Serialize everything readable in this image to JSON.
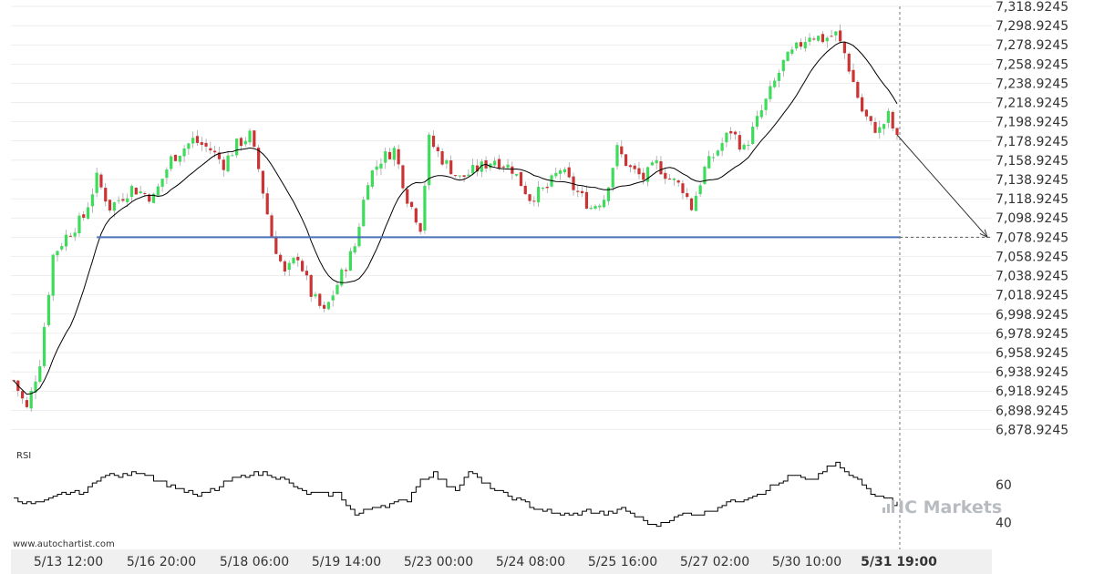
{
  "chart_data": {
    "type": "candlestick",
    "y_range": [
      6868.9245,
      7318.9245
    ],
    "y_ticks": [
      "7,318.9245",
      "7,298.9245",
      "7,278.9245",
      "7,258.9245",
      "7,238.9245",
      "7,218.9245",
      "7,198.9245",
      "7,178.9245",
      "7,158.9245",
      "7,138.9245",
      "7,118.9245",
      "7,098.9245",
      "7,078.9245",
      "7,058.9245",
      "7,038.9245",
      "7,018.9245",
      "6,998.9245",
      "6,978.9245",
      "6,958.9245",
      "6,938.9245",
      "6,918.9245",
      "6,898.9245",
      "6,878.9245"
    ],
    "x_ticks": [
      "5/13 12:00",
      "5/16 20:00",
      "5/18 06:00",
      "5/19 14:00",
      "5/23 00:00",
      "5/24 08:00",
      "5/25 16:00",
      "5/27 02:00",
      "5/30 10:00",
      "5/31 19:00"
    ],
    "x_tick_bold_index": 9,
    "support_level": 7078.9245,
    "projection_target": 7078.9245,
    "price_key": [
      [
        0,
        6930
      ],
      [
        3,
        6900
      ],
      [
        6,
        6950
      ],
      [
        9,
        7060
      ],
      [
        12,
        7080
      ],
      [
        16,
        7100
      ],
      [
        19,
        7140
      ],
      [
        22,
        7110
      ],
      [
        27,
        7130
      ],
      [
        32,
        7120
      ],
      [
        36,
        7160
      ],
      [
        41,
        7180
      ],
      [
        45,
        7170
      ],
      [
        48,
        7155
      ],
      [
        51,
        7175
      ],
      [
        54,
        7185
      ],
      [
        56,
        7150
      ],
      [
        59,
        7080
      ],
      [
        62,
        7040
      ],
      [
        65,
        7060
      ],
      [
        68,
        7020
      ],
      [
        71,
        7000
      ],
      [
        74,
        7030
      ],
      [
        78,
        7070
      ],
      [
        81,
        7140
      ],
      [
        84,
        7160
      ],
      [
        87,
        7170
      ],
      [
        90,
        7120
      ],
      [
        93,
        7090
      ],
      [
        95,
        7180
      ],
      [
        98,
        7160
      ],
      [
        102,
        7140
      ],
      [
        106,
        7150
      ],
      [
        110,
        7160
      ],
      [
        114,
        7150
      ],
      [
        118,
        7120
      ],
      [
        122,
        7130
      ],
      [
        125,
        7150
      ],
      [
        128,
        7130
      ],
      [
        132,
        7110
      ],
      [
        135,
        7120
      ],
      [
        138,
        7170
      ],
      [
        141,
        7150
      ],
      [
        144,
        7140
      ],
      [
        147,
        7155
      ],
      [
        150,
        7140
      ],
      [
        153,
        7130
      ],
      [
        155,
        7110
      ],
      [
        158,
        7150
      ],
      [
        161,
        7170
      ],
      [
        164,
        7190
      ],
      [
        167,
        7170
      ],
      [
        170,
        7200
      ],
      [
        173,
        7230
      ],
      [
        176,
        7260
      ],
      [
        179,
        7275
      ],
      [
        182,
        7290
      ],
      [
        185,
        7285
      ],
      [
        188,
        7290
      ],
      [
        190,
        7270
      ],
      [
        192,
        7240
      ],
      [
        194,
        7210
      ],
      [
        196,
        7195
      ],
      [
        198,
        7190
      ],
      [
        200,
        7205
      ],
      [
        202,
        7180
      ]
    ],
    "rsi": {
      "label": "RSI",
      "ticks": [
        60,
        40
      ],
      "range": [
        32,
        78
      ],
      "key": [
        [
          0,
          53
        ],
        [
          3,
          50
        ],
        [
          7,
          51
        ],
        [
          12,
          56
        ],
        [
          16,
          56
        ],
        [
          20,
          65
        ],
        [
          25,
          65
        ],
        [
          29,
          67
        ],
        [
          33,
          62
        ],
        [
          38,
          58
        ],
        [
          42,
          54
        ],
        [
          46,
          58
        ],
        [
          50,
          63
        ],
        [
          54,
          66
        ],
        [
          58,
          66
        ],
        [
          62,
          62
        ],
        [
          66,
          56
        ],
        [
          70,
          55
        ],
        [
          74,
          55
        ],
        [
          78,
          44
        ],
        [
          82,
          48
        ],
        [
          86,
          50
        ],
        [
          90,
          52
        ],
        [
          93,
          63
        ],
        [
          96,
          66
        ],
        [
          99,
          60
        ],
        [
          101,
          58
        ],
        [
          104,
          67
        ],
        [
          107,
          61
        ],
        [
          111,
          56
        ],
        [
          115,
          52
        ],
        [
          119,
          48
        ],
        [
          123,
          45
        ],
        [
          127,
          44
        ],
        [
          131,
          46
        ],
        [
          135,
          45
        ],
        [
          139,
          47
        ],
        [
          143,
          42
        ],
        [
          146,
          38
        ],
        [
          150,
          42
        ],
        [
          154,
          45
        ],
        [
          158,
          45
        ],
        [
          162,
          50
        ],
        [
          166,
          52
        ],
        [
          170,
          55
        ],
        [
          174,
          60
        ],
        [
          178,
          65
        ],
        [
          182,
          62
        ],
        [
          186,
          69
        ],
        [
          188,
          71
        ],
        [
          190,
          67
        ],
        [
          193,
          62
        ],
        [
          196,
          56
        ],
        [
          199,
          54
        ],
        [
          201,
          50
        ],
        [
          202,
          52
        ]
      ]
    },
    "watermark_left": "www.autochartist.com",
    "watermark_brand": "IC Markets",
    "colors": {
      "bull": "#3ddc5a",
      "bear": "#cc3333",
      "support": "#4a72b8",
      "ma": "#000000",
      "grid": "#dcdcdc",
      "axis_bg": "#f0f0f0"
    }
  }
}
